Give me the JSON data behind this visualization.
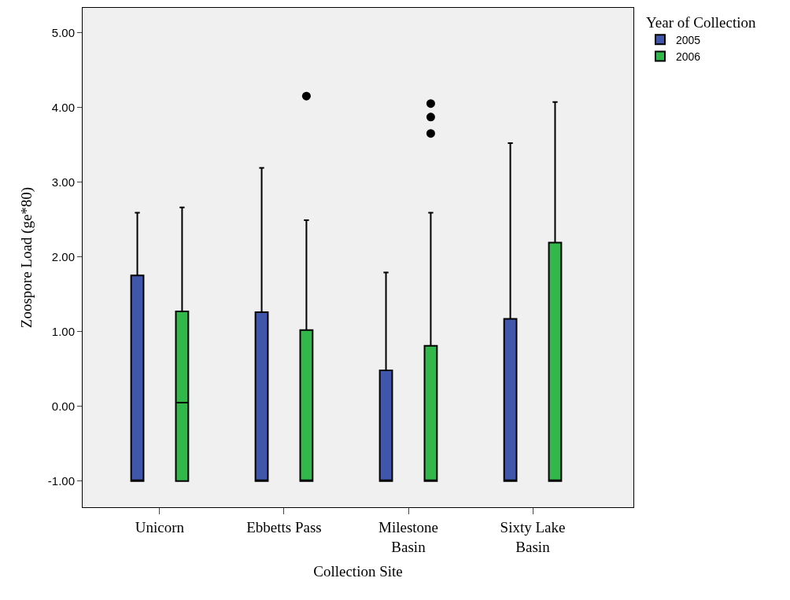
{
  "chart_data": {
    "type": "box",
    "xlabel": "Collection Site",
    "ylabel": "Zoospore Load (ge*80)",
    "legend_title": "Year of Collection",
    "categories": [
      "Unicorn",
      "Ebbetts Pass",
      "Milestone Basin",
      "Sixty Lake Basin"
    ],
    "ylim": [
      -1.35,
      5.33
    ],
    "yticks": [
      {
        "value": -1,
        "label": "-1.00"
      },
      {
        "value": 0,
        "label": "0.00"
      },
      {
        "value": 1,
        "label": "1.00"
      },
      {
        "value": 2,
        "label": "2.00"
      },
      {
        "value": 3,
        "label": "3.00"
      },
      {
        "value": 4,
        "label": "4.00"
      },
      {
        "value": 5,
        "label": "5.00"
      }
    ],
    "grid": false,
    "legend": "top right",
    "marker": "circle",
    "series": [
      {
        "name": "2005",
        "color": "#3f56aa",
        "boxes": [
          {
            "low": -1.0,
            "q1": -1.0,
            "median": -1.0,
            "q3": 1.75,
            "high": 2.59
          },
          {
            "low": -1.0,
            "q1": -1.0,
            "median": -1.0,
            "q3": 1.26,
            "high": 3.19
          },
          {
            "low": -1.0,
            "q1": -1.0,
            "median": -1.0,
            "q3": 0.48,
            "high": 1.79
          },
          {
            "low": -1.0,
            "q1": -1.0,
            "median": -1.0,
            "q3": 1.17,
            "high": 3.52
          }
        ]
      },
      {
        "name": "2006",
        "color": "#32b84a",
        "boxes": [
          {
            "low": -1.0,
            "q1": -1.0,
            "median": 0.05,
            "q3": 1.27,
            "high": 2.66
          },
          {
            "low": -1.0,
            "q1": -1.0,
            "median": -1.0,
            "q3": 1.02,
            "high": 2.49,
            "outliers": [
              4.15
            ]
          },
          {
            "low": -1.0,
            "q1": -1.0,
            "median": -1.0,
            "q3": 0.81,
            "high": 2.59,
            "outliers": [
              3.65,
              3.87,
              4.05
            ]
          },
          {
            "low": -1.0,
            "q1": -1.0,
            "median": -1.0,
            "q3": 2.19,
            "high": 4.07
          }
        ]
      }
    ]
  }
}
